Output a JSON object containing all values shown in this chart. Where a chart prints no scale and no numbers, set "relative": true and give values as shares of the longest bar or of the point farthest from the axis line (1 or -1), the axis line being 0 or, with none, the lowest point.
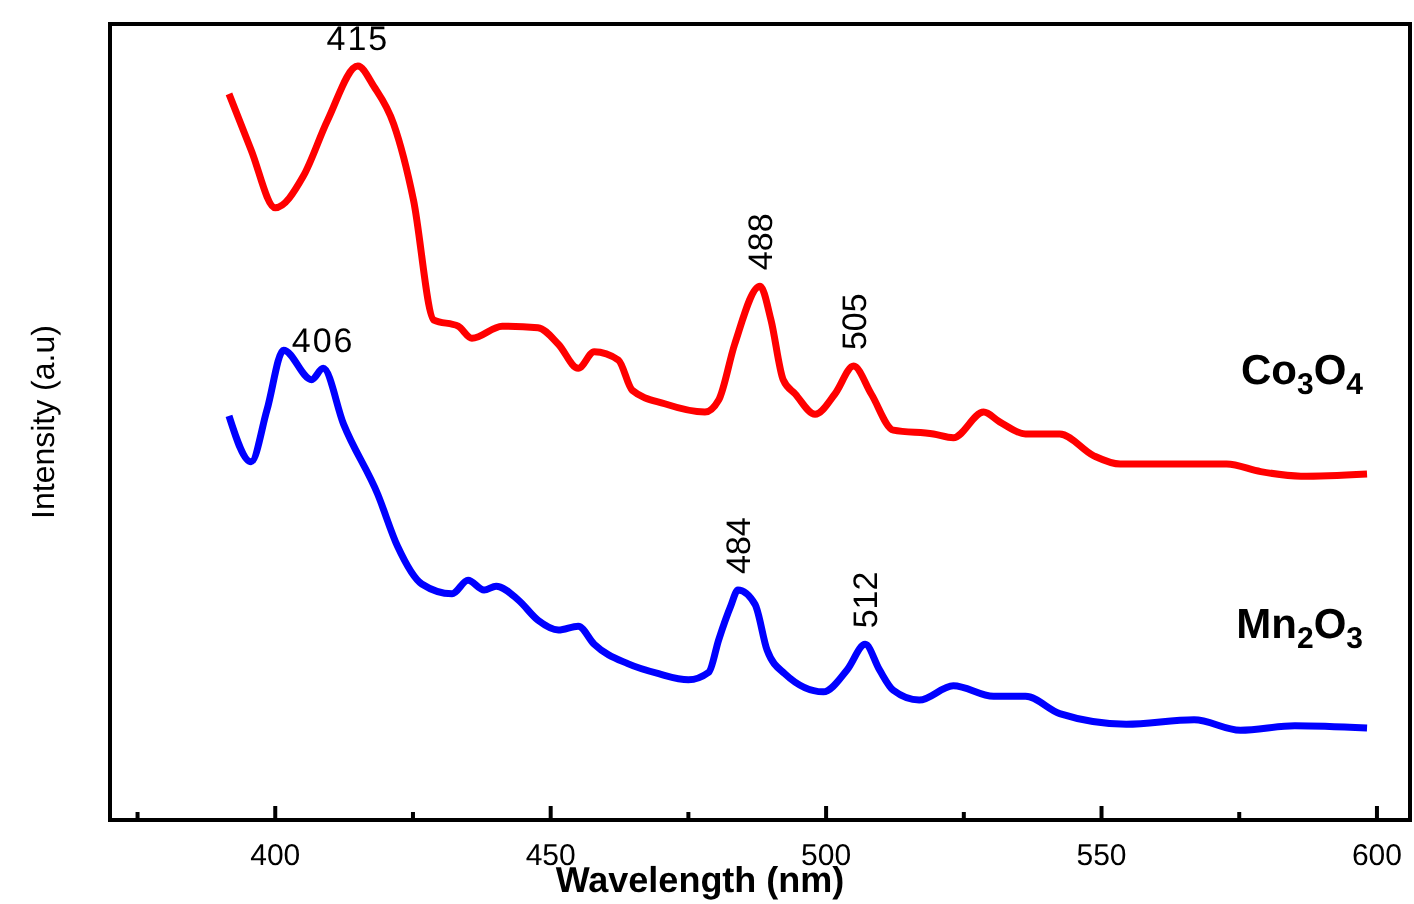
{
  "chart_data": {
    "type": "line",
    "relative": true,
    "xlabel": "Wavelength (nm)",
    "ylabel": "Intensity (a.u)",
    "xlim": [
      370,
      606
    ],
    "xticks": [
      {
        "value": 375,
        "label": null
      },
      400,
      {
        "value": 425,
        "label": null
      },
      450,
      {
        "value": 475,
        "label": null
      },
      500,
      {
        "value": 525,
        "label": null
      },
      550,
      {
        "value": 575,
        "label": null
      },
      600
    ],
    "grid": false,
    "legend": false,
    "marker": "none",
    "line_style": "solid",
    "series": [
      {
        "name": "Co$_{3}$O$_{4}$",
        "color": "#ff0000",
        "x": [
          391.6,
          395.6,
          400,
          405.1,
          409.5,
          415,
          417.9,
          421.5,
          425.1,
          428.8,
          433.2,
          435.7,
          441.2,
          447.7,
          451.4,
          455,
          457.9,
          462.3,
          464.8,
          470.7,
          478,
          480.5,
          483.4,
          488,
          490,
          492.2,
          494.4,
          498,
          501.6,
          505,
          508.2,
          512.2,
          519.5,
          523.1,
          528.6,
          531.5,
          536.2,
          542.4,
          548.6,
          553.4,
          572.7,
          578.9,
          586.2,
          598.2
        ],
        "values": [
          0.963,
          0.889,
          0.812,
          0.854,
          0.928,
          1,
          0.973,
          0.923,
          0.822,
          0.663,
          0.655,
          0.639,
          0.655,
          0.653,
          0.631,
          0.599,
          0.621,
          0.61,
          0.57,
          0.552,
          0.541,
          0.557,
          0.631,
          0.708,
          0.663,
          0.584,
          0.565,
          0.538,
          0.565,
          0.602,
          0.565,
          0.517,
          0.512,
          0.507,
          0.541,
          0.528,
          0.512,
          0.512,
          0.483,
          0.472,
          0.472,
          0.462,
          0.456,
          0.459
        ]
      },
      {
        "name": "Mn$_{2}$O$_{3}$",
        "color": "#0000ff",
        "x": [
          391.6,
          395.6,
          398.5,
          401.5,
          406.6,
          408.7,
          412.4,
          418.6,
          422.2,
          426.6,
          432.1,
          435,
          437.9,
          440.1,
          444.1,
          447.7,
          451.4,
          455,
          457.9,
          464.1,
          469.6,
          475,
          478.7,
          480.5,
          482.7,
          484,
          487.1,
          489.3,
          492.5,
          499.5,
          503.8,
          507.1,
          509.7,
          512.2,
          516.9,
          523.1,
          530.4,
          536.2,
          542.4,
          554.5,
          566.8,
          575.2,
          585.1,
          598.2
        ],
        "values": [
          0.536,
          0.475,
          0.544,
          0.623,
          0.584,
          0.599,
          0.525,
          0.432,
          0.363,
          0.313,
          0.3,
          0.318,
          0.305,
          0.31,
          0.292,
          0.265,
          0.252,
          0.257,
          0.233,
          0.207,
          0.194,
          0.186,
          0.196,
          0.239,
          0.284,
          0.305,
          0.286,
          0.225,
          0.194,
          0.17,
          0.199,
          0.233,
          0.199,
          0.172,
          0.159,
          0.178,
          0.164,
          0.164,
          0.141,
          0.127,
          0.133,
          0.119,
          0.125,
          0.122
        ]
      }
    ],
    "annotations": [
      {
        "text": "415",
        "x": 415,
        "y": 1
      },
      {
        "text": "488",
        "x": 488,
        "y": 0.708
      },
      {
        "text": "505",
        "x": 505,
        "y": 0.602
      },
      {
        "text": "406",
        "x": 408.7,
        "y": 0.599
      },
      {
        "text": "484",
        "x": 484,
        "y": 0.305
      },
      {
        "text": "512",
        "x": 507.1,
        "y": 0.233
      }
    ]
  }
}
